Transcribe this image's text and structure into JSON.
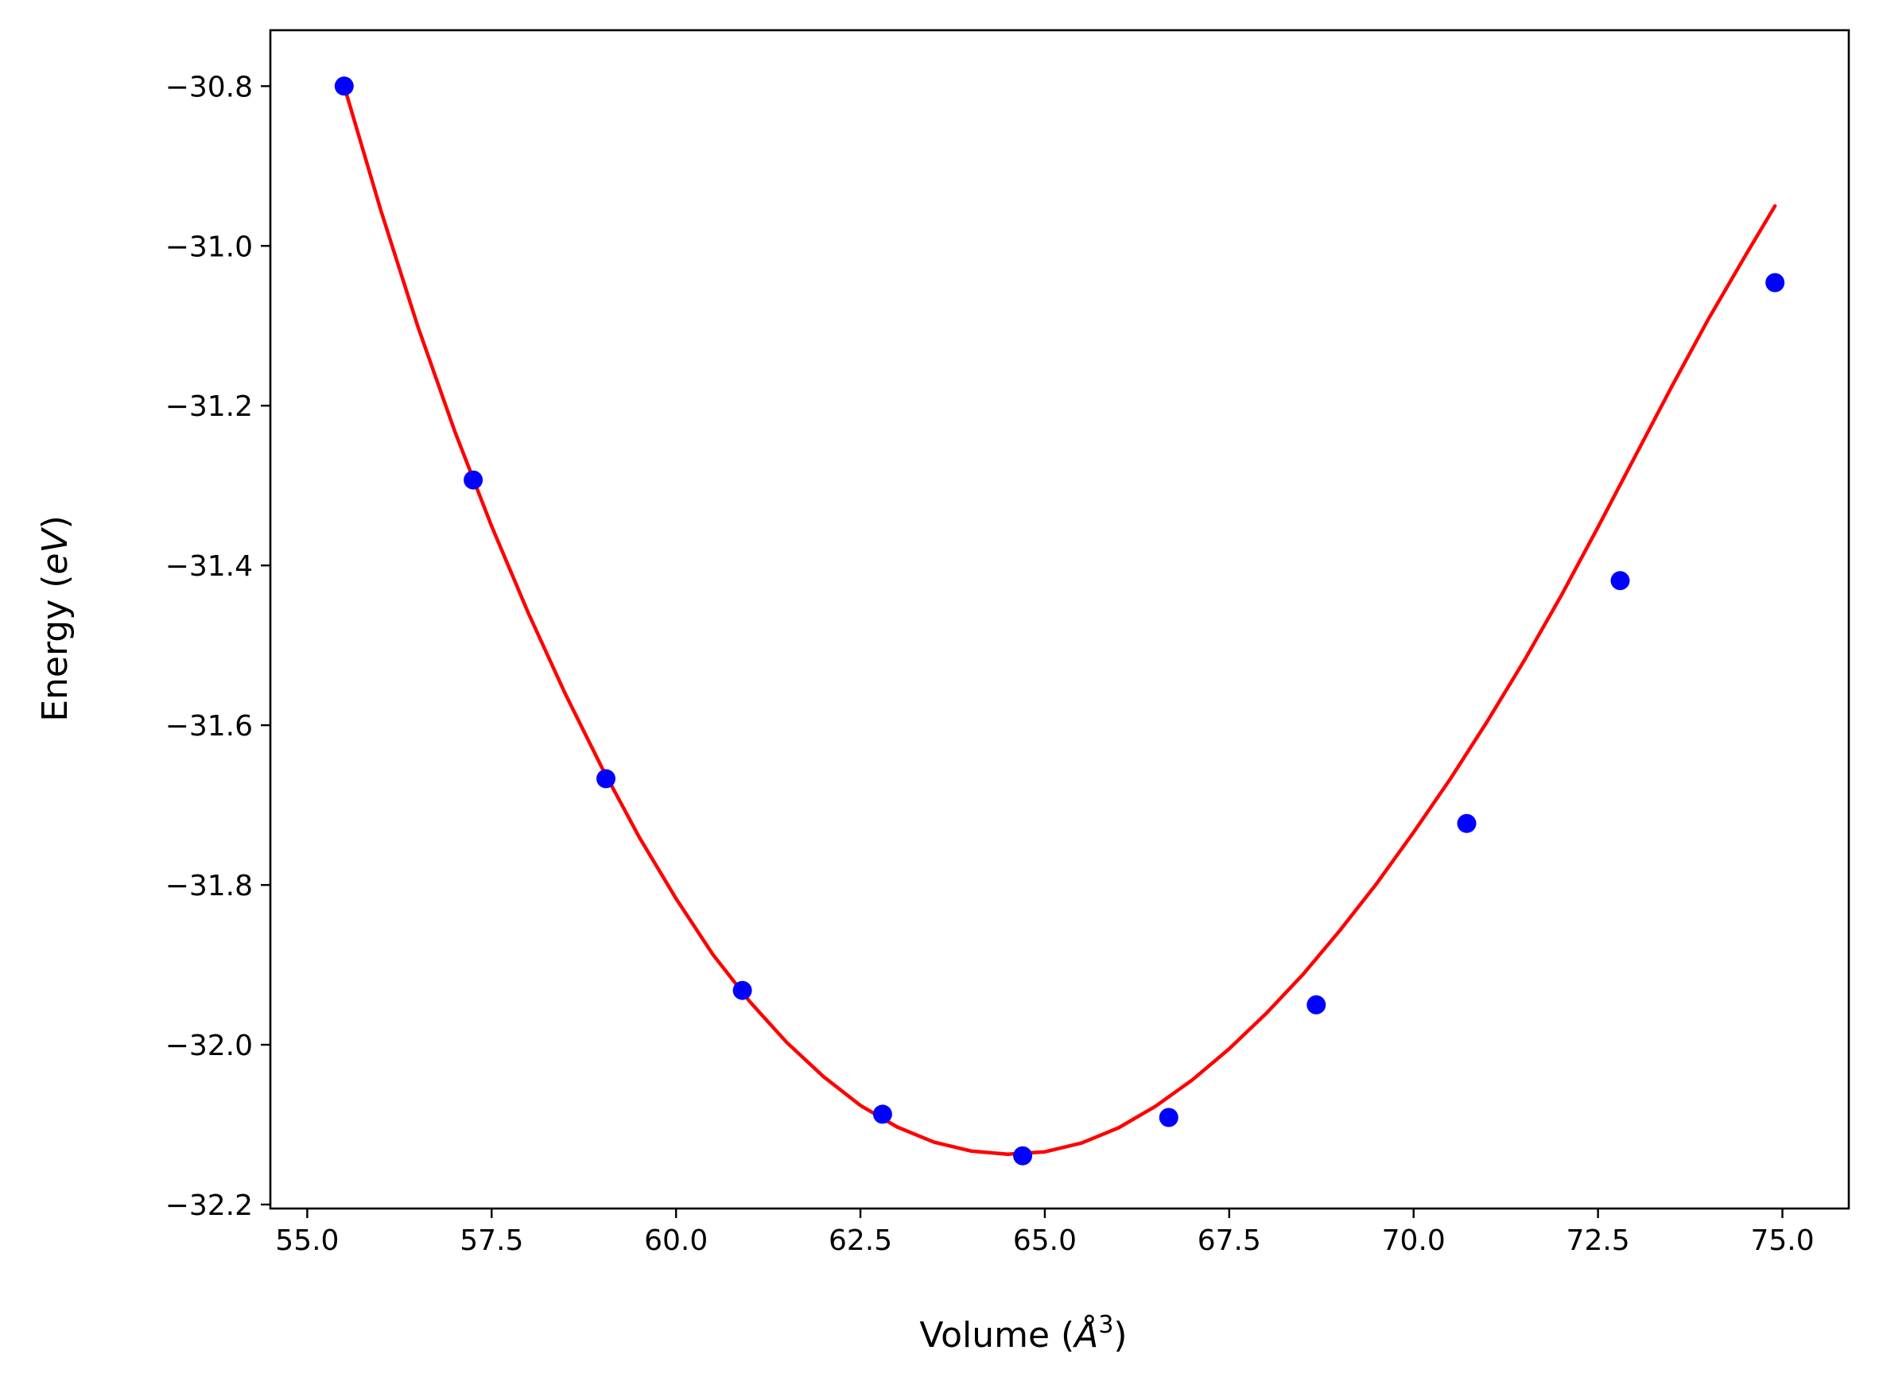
{
  "chart_data": {
    "type": "scatter",
    "title": "",
    "xlabel": "Volume (Å³)",
    "xlabel_parts": {
      "prefix": "Volume (",
      "unit": "Å",
      "power": "3",
      "suffix": ")"
    },
    "ylabel": "Energy (eV)",
    "ylabel_parts": {
      "prefix": "Energy (",
      "unit": "eV",
      "suffix": ")"
    },
    "xlim": [
      54.5,
      75.9
    ],
    "ylim": [
      -32.205,
      -30.73
    ],
    "xticks": [
      "55.0",
      "57.5",
      "60.0",
      "62.5",
      "65.0",
      "67.5",
      "70.0",
      "72.5",
      "75.0"
    ],
    "yticks": [
      "−30.8",
      "−31.0",
      "−31.2",
      "−31.4",
      "−31.6",
      "−31.8",
      "−32.0",
      "−32.2"
    ],
    "grid": false,
    "legend": "none",
    "series": [
      {
        "kind": "points",
        "color": "#0000ff",
        "x": [
          55.5,
          57.25,
          59.05,
          60.9,
          62.8,
          64.7,
          66.68,
          68.68,
          70.72,
          72.8,
          74.9
        ],
        "y": [
          -30.8,
          -31.293,
          -31.667,
          -31.932,
          -32.087,
          -32.139,
          -32.091,
          -31.95,
          -31.723,
          -31.419,
          -31.046
        ]
      },
      {
        "kind": "fit-line",
        "color": "#ff0000",
        "x": [
          55.5,
          56.0,
          56.5,
          57.0,
          57.5,
          58.0,
          58.5,
          59.0,
          59.5,
          60.0,
          60.5,
          61.0,
          61.5,
          62.0,
          62.5,
          63.0,
          63.5,
          64.0,
          64.5,
          65.0,
          65.5,
          66.0,
          66.5,
          67.0,
          67.5,
          68.0,
          68.5,
          69.0,
          69.5,
          70.0,
          70.5,
          71.0,
          71.5,
          72.0,
          72.5,
          73.0,
          73.5,
          74.0,
          74.5,
          74.9
        ],
        "y": [
          -30.8,
          -30.956,
          -31.101,
          -31.232,
          -31.351,
          -31.46,
          -31.561,
          -31.654,
          -31.74,
          -31.817,
          -31.887,
          -31.946,
          -31.997,
          -32.04,
          -32.076,
          -32.103,
          -32.122,
          -32.133,
          -32.137,
          -32.134,
          -32.123,
          -32.104,
          -32.077,
          -32.044,
          -32.005,
          -31.961,
          -31.912,
          -31.857,
          -31.798,
          -31.734,
          -31.667,
          -31.595,
          -31.519,
          -31.438,
          -31.352,
          -31.264,
          -31.176,
          -31.091,
          -31.012,
          -30.95
        ]
      }
    ]
  }
}
